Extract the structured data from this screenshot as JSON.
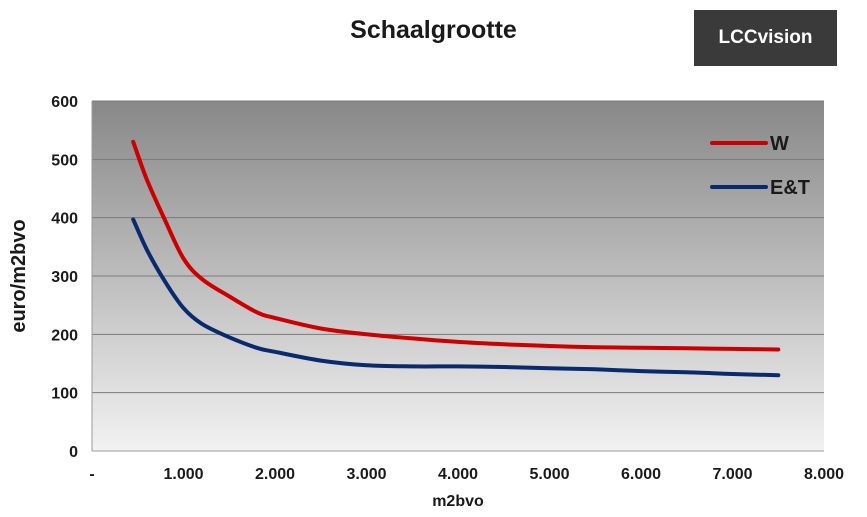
{
  "logo": {
    "text": "LCCvision",
    "background": "#3a3a3a",
    "color": "#ffffff"
  },
  "chart_data": {
    "type": "line",
    "title": "Schaalgrootte",
    "xlabel": "m2bvo",
    "ylabel": "euro/m2bvo",
    "xlim": [
      0,
      8000
    ],
    "ylim": [
      0,
      600
    ],
    "x_ticks": [
      0,
      1000,
      2000,
      3000,
      4000,
      5000,
      6000,
      7000,
      8000
    ],
    "x_tick_labels": [
      "-",
      "1.000",
      "2.000",
      "3.000",
      "4.000",
      "5.000",
      "6.000",
      "7.000",
      "8.000"
    ],
    "y_ticks": [
      0,
      100,
      200,
      300,
      400,
      500,
      600
    ],
    "y_tick_labels": [
      "0",
      "100",
      "200",
      "300",
      "400",
      "500",
      "600"
    ],
    "grid": true,
    "legend_position": "top-right",
    "series": [
      {
        "name": "W",
        "color": "#cc0000",
        "points": [
          [
            450,
            530
          ],
          [
            600,
            465
          ],
          [
            800,
            395
          ],
          [
            1000,
            330
          ],
          [
            1200,
            295
          ],
          [
            1500,
            265
          ],
          [
            1800,
            238
          ],
          [
            2000,
            228
          ],
          [
            2500,
            210
          ],
          [
            3000,
            200
          ],
          [
            3500,
            193
          ],
          [
            4000,
            187
          ],
          [
            4500,
            183
          ],
          [
            5000,
            180
          ],
          [
            5500,
            178
          ],
          [
            6000,
            177
          ],
          [
            6500,
            176
          ],
          [
            7000,
            175
          ],
          [
            7500,
            174
          ]
        ]
      },
      {
        "name": "E&T",
        "color": "#0a2a6e",
        "points": [
          [
            450,
            397
          ],
          [
            600,
            345
          ],
          [
            800,
            290
          ],
          [
            1000,
            245
          ],
          [
            1200,
            218
          ],
          [
            1500,
            195
          ],
          [
            1800,
            177
          ],
          [
            2000,
            170
          ],
          [
            2500,
            155
          ],
          [
            3000,
            147
          ],
          [
            3500,
            145
          ],
          [
            4000,
            145
          ],
          [
            4500,
            144
          ],
          [
            5000,
            142
          ],
          [
            5500,
            140
          ],
          [
            6000,
            137
          ],
          [
            6500,
            135
          ],
          [
            7000,
            132
          ],
          [
            7500,
            130
          ]
        ]
      }
    ]
  }
}
